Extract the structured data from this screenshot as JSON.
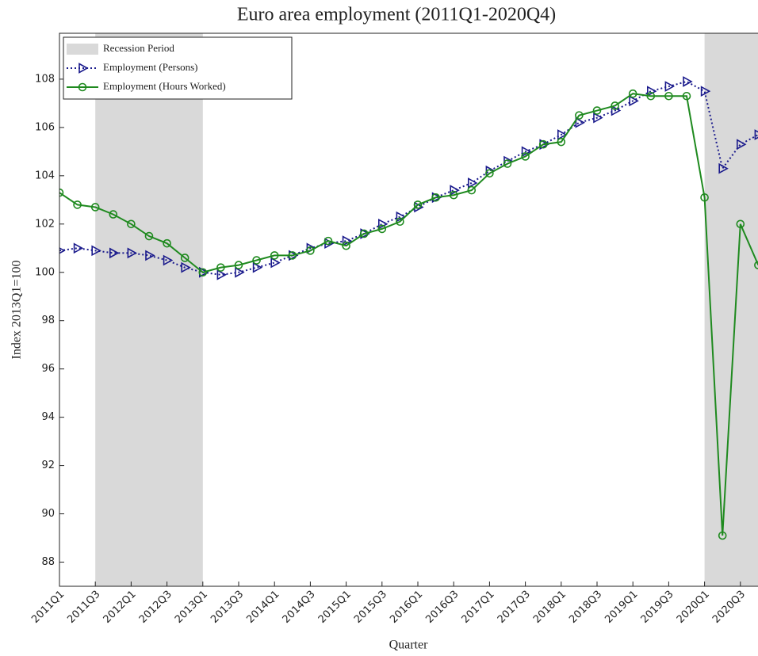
{
  "chart_data": {
    "type": "line",
    "title": "Euro area employment (2011Q1-2020Q4)",
    "xlabel": "Quarter",
    "ylabel": "Index 2013Q1=100",
    "categories": [
      "2011Q1",
      null,
      "2011Q3",
      null,
      "2012Q1",
      null,
      "2012Q3",
      null,
      "2013Q1",
      null,
      "2013Q3",
      null,
      "2014Q1",
      null,
      "2014Q3",
      null,
      "2015Q1",
      null,
      "2015Q3",
      null,
      "2016Q1",
      null,
      "2016Q3",
      null,
      "2017Q1",
      null,
      "2017Q3",
      null,
      "2018Q1",
      null,
      "2018Q3",
      null,
      "2019Q1",
      null,
      "2019Q3",
      null,
      "2020Q1",
      null,
      "2020Q3",
      null
    ],
    "recession_name": "Recession Period",
    "recession_color": "#d9d9d9",
    "recessions": [
      [
        2,
        8
      ],
      [
        36,
        39
      ]
    ],
    "series": [
      {
        "name": "Employment (Persons)",
        "color": "#1a1a8c",
        "marker": "triangle-right",
        "dashed": true,
        "values": [
          100.9,
          101.0,
          100.9,
          100.8,
          100.8,
          100.7,
          100.5,
          100.2,
          100.0,
          99.9,
          100.0,
          100.2,
          100.4,
          100.7,
          101.0,
          101.2,
          101.3,
          101.6,
          102.0,
          102.3,
          102.7,
          103.1,
          103.4,
          103.7,
          104.2,
          104.6,
          105.0,
          105.3,
          105.7,
          106.2,
          106.4,
          106.7,
          107.1,
          107.5,
          107.7,
          107.9,
          107.5,
          104.3,
          105.3,
          105.7
        ]
      },
      {
        "name": "Employment (Hours Worked)",
        "color": "#1f8a1f",
        "marker": "circle",
        "dashed": false,
        "values": [
          103.3,
          102.8,
          102.7,
          102.4,
          102.0,
          101.5,
          101.2,
          100.6,
          100.0,
          100.2,
          100.3,
          100.5,
          100.7,
          100.7,
          100.9,
          101.3,
          101.1,
          101.6,
          101.8,
          102.1,
          102.8,
          103.1,
          103.2,
          103.4,
          104.1,
          104.5,
          104.8,
          105.3,
          105.4,
          106.5,
          106.7,
          106.9,
          107.4,
          107.3,
          107.3,
          107.3,
          103.1,
          89.1,
          102.0,
          100.3
        ]
      }
    ],
    "ylim": [
      87,
      109.9
    ],
    "yticks": [
      88,
      90,
      92,
      94,
      96,
      98,
      100,
      102,
      104,
      106,
      108
    ],
    "legend": "upper-left"
  }
}
